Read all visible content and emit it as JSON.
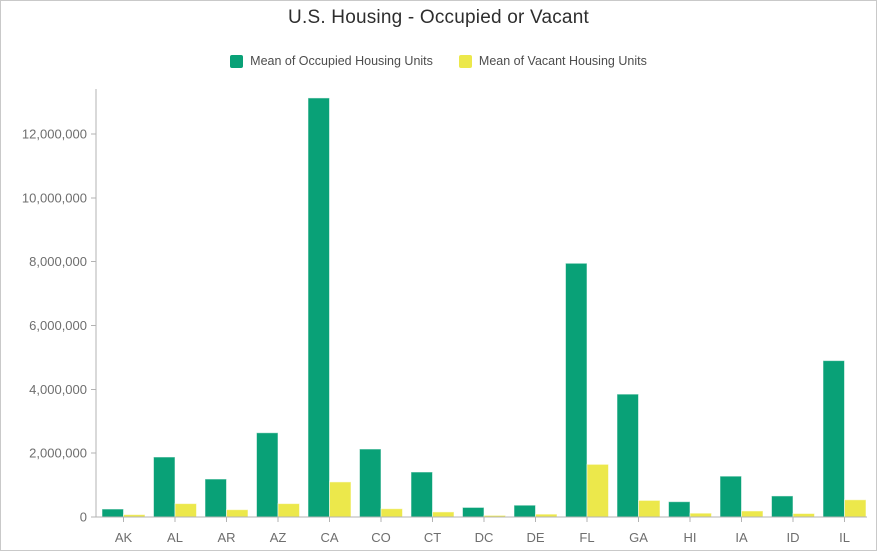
{
  "title": "U.S. Housing - Occupied or Vacant",
  "legend": [
    {
      "label": "Mean of Occupied Housing Units",
      "color": "#09a177"
    },
    {
      "label": "Mean of Vacant Housing Units",
      "color": "#ece84b"
    }
  ],
  "chart_data": {
    "type": "bar",
    "title": "U.S. Housing - Occupied or Vacant",
    "xlabel": "",
    "ylabel": "",
    "categories": [
      "AK",
      "AL",
      "AR",
      "AZ",
      "CA",
      "CO",
      "CT",
      "DC",
      "DE",
      "FL",
      "GA",
      "HI",
      "IA",
      "ID",
      "IL"
    ],
    "series": [
      {
        "name": "Mean of Occupied Housing Units",
        "color": "#09a177",
        "values": [
          250000,
          1880000,
          1190000,
          2640000,
          13130000,
          2130000,
          1410000,
          300000,
          370000,
          7950000,
          3850000,
          480000,
          1280000,
          660000,
          4900000
        ]
      },
      {
        "name": "Mean of Vacant Housing Units",
        "color": "#ece84b",
        "values": [
          75000,
          420000,
          230000,
          420000,
          1100000,
          260000,
          160000,
          50000,
          90000,
          1650000,
          520000,
          120000,
          190000,
          110000,
          540000
        ]
      }
    ],
    "ylim": [
      0,
      13400000
    ],
    "yticks": [
      0,
      2000000,
      4000000,
      6000000,
      8000000,
      10000000,
      12000000
    ],
    "ytick_labels": [
      "0",
      "2,000,000",
      "4,000,000",
      "6,000,000",
      "8,000,000",
      "10,000,000",
      "12,000,000"
    ],
    "grid": false,
    "legend_position": "top",
    "colors": {
      "axis_line": "#b3b3b3",
      "tick_label": "#6e6e6e",
      "title": "#2e2e2e",
      "legend_text": "#4d4d4d"
    }
  }
}
